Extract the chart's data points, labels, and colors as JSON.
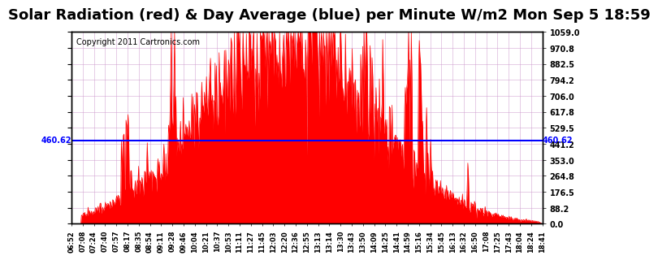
{
  "title": "Solar Radiation (red) & Day Average (blue) per Minute W/m2 Mon Sep 5 18:59",
  "copyright": "Copyright 2011 Cartronics.com",
  "avg_line_value": 460.62,
  "avg_line_label": "460.62",
  "ymax": 1059.0,
  "ymin": 0.0,
  "yticks": [
    0.0,
    88.2,
    176.5,
    264.8,
    353.0,
    441.2,
    529.5,
    617.8,
    706.0,
    794.2,
    882.5,
    970.8,
    1059.0
  ],
  "xtick_labels": [
    "06:52",
    "07:08",
    "07:24",
    "07:40",
    "07:57",
    "08:17",
    "08:35",
    "08:54",
    "09:11",
    "09:28",
    "09:46",
    "10:04",
    "10:21",
    "10:37",
    "10:53",
    "11:11",
    "11:27",
    "11:45",
    "12:03",
    "12:20",
    "12:36",
    "12:55",
    "13:13",
    "13:14",
    "13:30",
    "13:43",
    "13:50",
    "14:09",
    "14:25",
    "14:41",
    "14:59",
    "15:16",
    "15:34",
    "15:45",
    "16:13",
    "16:32",
    "16:50",
    "17:08",
    "17:25",
    "17:43",
    "18:04",
    "18:24",
    "18:41"
  ],
  "background_color": "#ffffff",
  "fill_color": "#ff0000",
  "line_color": "#0000ff",
  "grid_color": "#cc99cc",
  "title_fontsize": 13,
  "copyright_fontsize": 7
}
